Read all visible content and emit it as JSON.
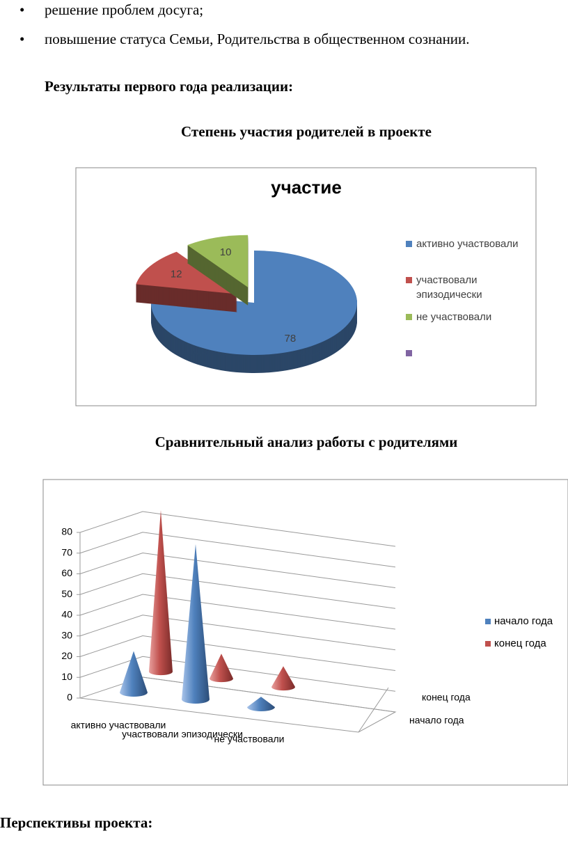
{
  "bullets": [
    "решение проблем досуга;",
    "повышение статуса Семьи, Родительства в общественном сознании."
  ],
  "section_heading": "Результаты первого года реализации:",
  "chart_headings": [
    "Степень участия родителей в проекте",
    "Сравнительный анализ работы с родителями"
  ],
  "footer_heading": "Перспективы проекта:",
  "chart_data": [
    {
      "type": "pie",
      "title": "участие",
      "categories": [
        "активно участвовали",
        "участвовали эпизодически",
        "не участвовали",
        null
      ],
      "values": [
        78,
        12,
        10,
        null
      ],
      "colors": [
        "#4f81bd",
        "#c0504d",
        "#9bbb59",
        "#8064a2"
      ]
    },
    {
      "type": "cone",
      "categories": [
        "активно участвовали",
        "участвовали эпизодически",
        "не участвовали"
      ],
      "series": [
        {
          "name": "начало года",
          "color": "#4f81bd",
          "values": [
            20,
            75,
            5
          ]
        },
        {
          "name": "конец года",
          "color": "#c0504d",
          "values": [
            78,
            12,
            10
          ]
        }
      ],
      "ylim": [
        0,
        80
      ],
      "yticks": [
        0,
        10,
        20,
        30,
        40,
        50,
        60,
        70,
        80
      ],
      "grid": true
    }
  ]
}
